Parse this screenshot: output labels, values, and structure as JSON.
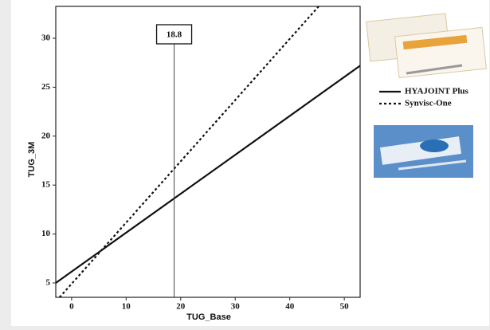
{
  "chart_data": {
    "type": "line",
    "x_label": "TUG_Base",
    "y_label": "TUG_3M",
    "xlim": [
      -2.9,
      52.9
    ],
    "ylim": [
      3.53,
      33.26
    ],
    "xticks": [
      0,
      10,
      20,
      30,
      40,
      50
    ],
    "yticks": [
      5,
      10,
      15,
      20,
      25,
      30
    ],
    "series": [
      {
        "name": "HYAJOINT Plus",
        "color": "#111111",
        "style": "solid",
        "x": [
          -2.9,
          52.9
        ],
        "values": [
          5.0,
          27.2
        ]
      },
      {
        "name": "Synvisc-One",
        "color": "#111111",
        "style": "dotted",
        "x": [
          -2.2,
          45.3
        ],
        "values": [
          3.53,
          33.26
        ]
      }
    ],
    "reference_line": {
      "x": 18.8
    }
  }
}
